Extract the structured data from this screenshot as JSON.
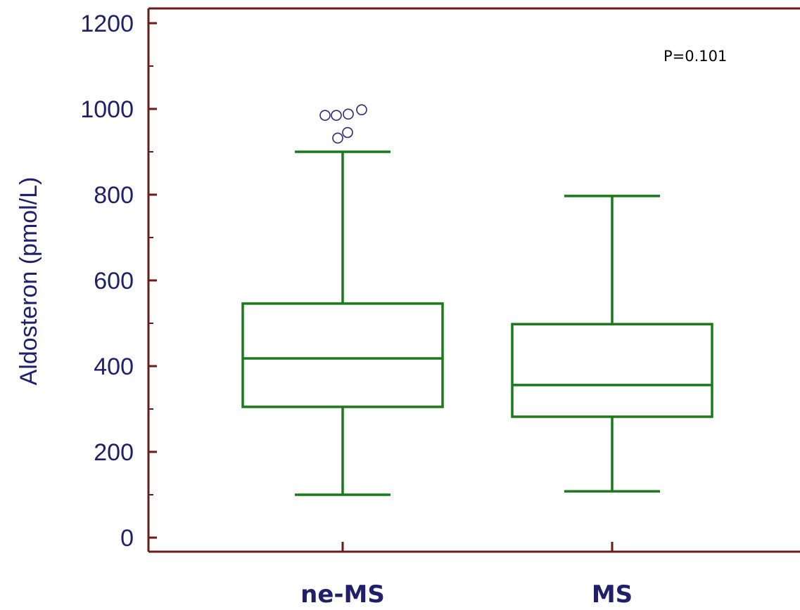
{
  "chart_data": {
    "type": "box",
    "ylabel": "Aldosteron (pmol/L)",
    "ylim": [
      0,
      1200
    ],
    "yticks": [
      0,
      200,
      400,
      600,
      800,
      1000,
      1200
    ],
    "yticks_labels": [
      "0",
      "200",
      "400",
      "600",
      "800",
      "1000",
      "1200"
    ],
    "minor_ticks": [
      100,
      300,
      500,
      700,
      900,
      1100
    ],
    "categories": [
      "ne-MS",
      "MS"
    ],
    "boxes": [
      {
        "category": "ne-MS",
        "whisker_low": 100,
        "q1": 305,
        "median": 418,
        "q3": 546,
        "whisker_high": 900,
        "outliers": [
          932,
          945,
          985,
          985,
          988,
          998
        ]
      },
      {
        "category": "MS",
        "whisker_low": 108,
        "q1": 282,
        "median": 356,
        "q3": 498,
        "whisker_high": 797,
        "outliers": []
      }
    ],
    "annotation": "P=0.101",
    "grid": false
  },
  "colors": {
    "axis": "#6b1a1a",
    "box": "#1a7a1a",
    "outlier": "#2a2a7a",
    "text": "#1f1f6b"
  }
}
